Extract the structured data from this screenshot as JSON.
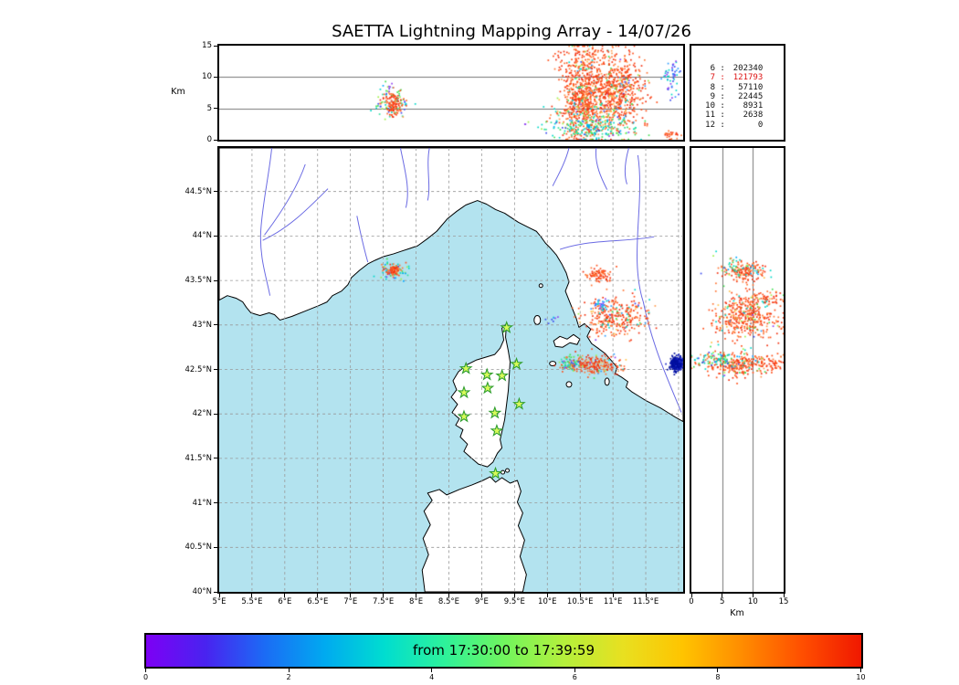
{
  "title": "SAETTA Lightning Mapping Array - 14/07/26",
  "stats_panel": {
    "highlight_color": "#dd1111",
    "rows": [
      {
        "level": "6",
        "count": "202340",
        "highlight": false
      },
      {
        "level": "7",
        "count": "121793",
        "highlight": true
      },
      {
        "level": "8",
        "count": "57110",
        "highlight": false
      },
      {
        "level": "9",
        "count": "22445",
        "highlight": false
      },
      {
        "level": "10",
        "count": "8931",
        "highlight": false
      },
      {
        "level": "11",
        "count": "2638",
        "highlight": false
      },
      {
        "level": "12",
        "count": "0",
        "highlight": false
      }
    ]
  },
  "axes": {
    "alt_panel": {
      "label": "Km",
      "lim": [
        0,
        15
      ],
      "grid_at": [
        5,
        10
      ],
      "ticks": [
        {
          "v": 0,
          "label": "0"
        },
        {
          "v": 5,
          "label": "5"
        },
        {
          "v": 10,
          "label": "10"
        },
        {
          "v": 15,
          "label": "15"
        }
      ]
    },
    "map": {
      "lon_lim": [
        5,
        12.07
      ],
      "lat_lim": [
        40,
        44.99
      ],
      "lat_ticks": [
        {
          "v": 44.5,
          "label": "44.5°N"
        },
        {
          "v": 44,
          "label": "44°N"
        },
        {
          "v": 43.5,
          "label": "43.5°N"
        },
        {
          "v": 43,
          "label": "43°N"
        },
        {
          "v": 42.5,
          "label": "42.5°N"
        },
        {
          "v": 42,
          "label": "42°N"
        },
        {
          "v": 41.5,
          "label": "41.5°N"
        },
        {
          "v": 41,
          "label": "41°N"
        },
        {
          "v": 40.5,
          "label": "40.5°N"
        },
        {
          "v": 40,
          "label": "40°N"
        }
      ],
      "lon_ticks": [
        {
          "v": 5,
          "label": "5°E"
        },
        {
          "v": 5.5,
          "label": "5.5°E"
        },
        {
          "v": 6,
          "label": "6°E"
        },
        {
          "v": 6.5,
          "label": "6.5°E"
        },
        {
          "v": 7,
          "label": "7°E"
        },
        {
          "v": 7.5,
          "label": "7.5°E"
        },
        {
          "v": 8,
          "label": "8°E"
        },
        {
          "v": 8.5,
          "label": "8.5°E"
        },
        {
          "v": 9,
          "label": "9°E"
        },
        {
          "v": 9.5,
          "label": "9.5°E"
        },
        {
          "v": 10,
          "label": "10°E"
        },
        {
          "v": 10.5,
          "label": "10.5°E"
        },
        {
          "v": 11,
          "label": "11°E"
        },
        {
          "v": 11.5,
          "label": "11.5°E"
        }
      ]
    },
    "right_panel": {
      "label": "Km",
      "lim": [
        0,
        15
      ],
      "grid_at": [
        5,
        10
      ],
      "ticks": [
        {
          "v": 0,
          "label": "0"
        },
        {
          "v": 5,
          "label": "5"
        },
        {
          "v": 10,
          "label": "10"
        },
        {
          "v": 15,
          "label": "15"
        }
      ]
    }
  },
  "colorbar": {
    "label": "from 17:30:00 to 17:39:59",
    "ticks": [
      "0",
      "2",
      "4",
      "6",
      "8",
      "10"
    ],
    "gradient": [
      "#7d00f5",
      "#4923f0",
      "#1b6cf5",
      "#00aaf0",
      "#00ddd0",
      "#2df29b",
      "#70f55e",
      "#b4f03c",
      "#e8e020",
      "#ffc400",
      "#ff8c00",
      "#ff4f00",
      "#f01800"
    ]
  },
  "map_colors": {
    "sea": "#b3e3ef",
    "land": "#ffffff",
    "coast": "#000000",
    "river": "#5a5ae0",
    "grid": "#999999",
    "station_fill": "#d8fa5a",
    "station_edge": "#2f9e2f"
  },
  "chart_data": {
    "type": "scatter",
    "title": "SAETTA Lightning Mapping Array - 14/07/26",
    "time_window": {
      "start": "17:30:00",
      "end": "17:39:59",
      "colorbar_range": [
        0,
        10
      ]
    },
    "panels": {
      "top": {
        "x": "longitude_deg_E",
        "y": "altitude_km",
        "ylim": [
          0,
          15
        ]
      },
      "map": {
        "x": "longitude_deg_E",
        "xlim": [
          5,
          12.07
        ],
        "y": "latitude_deg_N",
        "ylim": [
          40,
          44.99
        ]
      },
      "right": {
        "x": "altitude_km",
        "xlim": [
          0,
          15
        ],
        "y": "latitude_deg_N"
      }
    },
    "source_counts_by_min_stations": [
      {
        "min_stations": 6,
        "sources": 202340
      },
      {
        "min_stations": 7,
        "sources": 121793
      },
      {
        "min_stations": 8,
        "sources": 57110
      },
      {
        "min_stations": 9,
        "sources": 22445
      },
      {
        "min_stations": 10,
        "sources": 8931
      },
      {
        "min_stations": 11,
        "sources": 2638
      },
      {
        "min_stations": 12,
        "sources": 0
      }
    ],
    "stations_lon_lat": [
      [
        9.38,
        42.97
      ],
      [
        8.76,
        42.51
      ],
      [
        9.08,
        42.44
      ],
      [
        9.31,
        42.43
      ],
      [
        9.53,
        42.56
      ],
      [
        8.73,
        42.24
      ],
      [
        9.09,
        42.29
      ],
      [
        9.57,
        42.11
      ],
      [
        8.73,
        41.97
      ],
      [
        9.2,
        42.01
      ],
      [
        9.23,
        41.81
      ],
      [
        9.21,
        41.33
      ]
    ],
    "palettes": {
      "storm": [
        [
          "#f23010",
          30
        ],
        [
          "#ff4f1a",
          28
        ],
        [
          "#ff7433",
          20
        ],
        [
          "#ff9b50",
          7
        ],
        [
          "#ffc34d",
          3
        ],
        [
          "#00d8c8",
          4
        ],
        [
          "#45e055",
          3
        ],
        [
          "#9ef04a",
          2
        ],
        [
          "#2e9cff",
          1.5
        ],
        [
          "#3b4bf0",
          0.8
        ],
        [
          "#9040f0",
          0.7
        ]
      ],
      "orange": [
        [
          "#f23010",
          35
        ],
        [
          "#ff4f1a",
          35
        ],
        [
          "#ff7433",
          25
        ],
        [
          "#ff9b50",
          5
        ]
      ],
      "lowmix": [
        [
          "#00d8c8",
          26
        ],
        [
          "#35e0a0",
          14
        ],
        [
          "#45e055",
          18
        ],
        [
          "#9ef04a",
          10
        ],
        [
          "#00a8ff",
          9
        ],
        [
          "#3b4bf0",
          6
        ],
        [
          "#ff7433",
          9
        ],
        [
          "#ff4f1a",
          5
        ],
        [
          "#9040f0",
          3
        ]
      ],
      "bluecyan": [
        [
          "#3b4bf0",
          28
        ],
        [
          "#2e9cff",
          30
        ],
        [
          "#00d8c8",
          26
        ],
        [
          "#9040f0",
          16
        ]
      ],
      "purple": [
        [
          "#9040f0",
          70
        ],
        [
          "#6a30d8",
          30
        ]
      ],
      "darkblue": [
        [
          "#000f9e",
          75
        ],
        [
          "#1c28c8",
          25
        ]
      ]
    },
    "top_panel_clusters": [
      {
        "lon": 7.66,
        "alt": 5.9,
        "slon": 0.14,
        "salt": 1.3,
        "n": 80,
        "palette": "lowmix"
      },
      {
        "lon": 7.65,
        "alt": 5.7,
        "slon": 0.07,
        "salt": 0.9,
        "n": 110,
        "palette": "orange"
      },
      {
        "lon": 7.61,
        "alt": 8.8,
        "slon": 0.03,
        "salt": 0.4,
        "n": 4,
        "palette": "purple"
      },
      {
        "lon": 9.66,
        "alt": 2.4,
        "slon": 0.012,
        "salt": 0.15,
        "n": 2,
        "palette": "purple"
      },
      {
        "lon": 10.52,
        "alt": 7.2,
        "slon": 0.16,
        "salt": 3.5,
        "n": 650,
        "palette": "storm"
      },
      {
        "lon": 11.08,
        "alt": 8.0,
        "slon": 0.2,
        "salt": 3.0,
        "n": 520,
        "palette": "storm"
      },
      {
        "lon": 10.8,
        "alt": 5.0,
        "slon": 0.3,
        "salt": 2.4,
        "n": 190,
        "palette": "storm"
      },
      {
        "lon": 10.7,
        "alt": 1.8,
        "slon": 0.34,
        "salt": 1.1,
        "n": 230,
        "palette": "lowmix"
      },
      {
        "lon": 10.6,
        "alt": 13.2,
        "slon": 0.3,
        "salt": 0.9,
        "n": 70,
        "palette": "orange"
      },
      {
        "lon": 11.9,
        "alt": 10.0,
        "slon": 0.07,
        "salt": 1.4,
        "n": 55,
        "palette": "bluecyan"
      },
      {
        "lon": 11.88,
        "alt": 0.9,
        "slon": 0.06,
        "salt": 0.5,
        "n": 25,
        "palette": "orange"
      }
    ],
    "map_clusters": [
      {
        "lon": 7.66,
        "lat": 43.62,
        "slon": 0.11,
        "slat": 0.055,
        "n": 55,
        "palette": "lowmix"
      },
      {
        "lon": 7.65,
        "lat": 43.61,
        "slon": 0.055,
        "slat": 0.032,
        "n": 80,
        "palette": "orange"
      },
      {
        "lon": 10.78,
        "lat": 43.56,
        "slon": 0.085,
        "slat": 0.042,
        "n": 80,
        "palette": "orange"
      },
      {
        "lon": 11.05,
        "lat": 43.1,
        "slon": 0.26,
        "slat": 0.11,
        "n": 300,
        "palette": "storm"
      },
      {
        "lon": 10.84,
        "lat": 43.22,
        "slon": 0.07,
        "slat": 0.05,
        "n": 35,
        "palette": "bluecyan"
      },
      {
        "lon": 10.05,
        "lat": 43.07,
        "slon": 0.05,
        "slat": 0.03,
        "n": 8,
        "palette": "bluecyan"
      },
      {
        "lon": 10.72,
        "lat": 42.55,
        "slon": 0.22,
        "slat": 0.05,
        "n": 230,
        "palette": "storm"
      },
      {
        "lon": 10.34,
        "lat": 42.58,
        "slon": 0.07,
        "slat": 0.04,
        "n": 60,
        "palette": "lowmix"
      },
      {
        "lon": 11.97,
        "lat": 42.56,
        "slon": 0.045,
        "slat": 0.04,
        "n": 400,
        "palette": "darkblue"
      }
    ],
    "right_panel_clusters": [
      {
        "alt": 9.0,
        "lat": 43.6,
        "salt": 2.0,
        "slat": 0.05,
        "n": 150,
        "palette": "storm"
      },
      {
        "alt": 7.0,
        "lat": 43.66,
        "salt": 2.4,
        "slat": 0.08,
        "n": 45,
        "palette": "lowmix"
      },
      {
        "alt": 8.6,
        "lat": 43.08,
        "salt": 2.6,
        "slat": 0.12,
        "n": 400,
        "palette": "storm"
      },
      {
        "alt": 11.5,
        "lat": 43.28,
        "salt": 1.8,
        "slat": 0.05,
        "n": 80,
        "palette": "storm"
      },
      {
        "alt": 8.0,
        "lat": 42.55,
        "salt": 2.8,
        "slat": 0.06,
        "n": 280,
        "palette": "storm"
      },
      {
        "alt": 4.0,
        "lat": 42.61,
        "salt": 1.8,
        "slat": 0.05,
        "n": 100,
        "palette": "lowmix"
      },
      {
        "alt": 13.5,
        "lat": 42.56,
        "salt": 0.8,
        "slat": 0.03,
        "n": 30,
        "palette": "orange"
      }
    ]
  }
}
